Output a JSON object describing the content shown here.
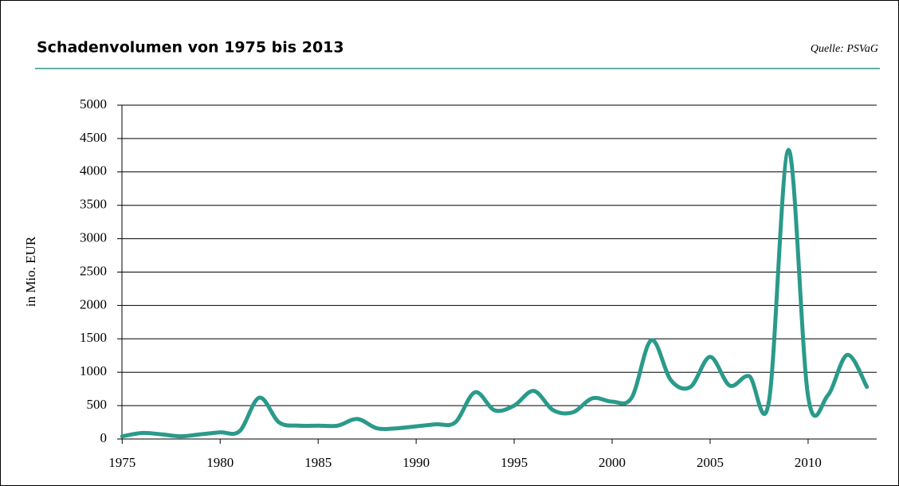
{
  "chart_data": {
    "type": "line",
    "title": "Schadenvolumen von 1975 bis 2013",
    "source": "Quelle: PSVaG",
    "ylabel": "in Mio. EUR",
    "x": [
      1975,
      1976,
      1977,
      1978,
      1979,
      1980,
      1981,
      1982,
      1983,
      1984,
      1985,
      1986,
      1987,
      1988,
      1989,
      1990,
      1991,
      1992,
      1993,
      1994,
      1995,
      1996,
      1997,
      1998,
      1999,
      2000,
      2001,
      2002,
      2003,
      2004,
      2005,
      2006,
      2007,
      2008,
      2009,
      2010,
      2011,
      2012,
      2013
    ],
    "series": [
      {
        "name": "Schadenvolumen",
        "color": "#2a9a8a",
        "values": [
          40,
          90,
          70,
          40,
          70,
          100,
          120,
          620,
          250,
          200,
          200,
          200,
          300,
          160,
          160,
          190,
          220,
          250,
          700,
          430,
          500,
          720,
          430,
          400,
          610,
          560,
          620,
          1480,
          880,
          780,
          1230,
          800,
          940,
          560,
          4330,
          640,
          650,
          1260,
          780
        ]
      }
    ],
    "xlim": [
      1974.5,
      2013.5
    ],
    "xticks": [
      1975,
      1980,
      1985,
      1990,
      1995,
      2000,
      2005,
      2010
    ],
    "ylim": [
      0,
      5000
    ],
    "yticks": [
      0,
      500,
      1000,
      1500,
      2000,
      2500,
      3000,
      3500,
      4000,
      4500,
      5000
    ],
    "grid": true
  }
}
